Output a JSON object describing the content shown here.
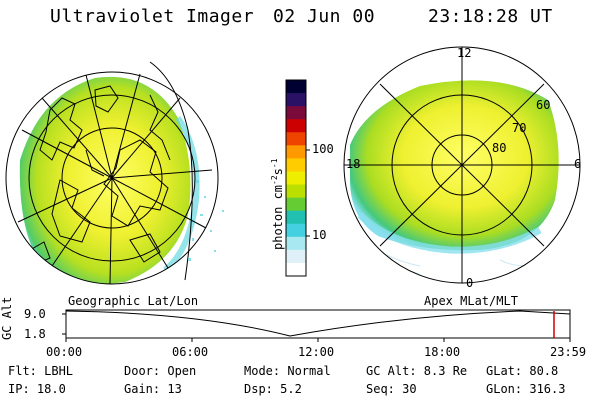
{
  "header": {
    "title": "Ultraviolet Imager",
    "date": "02 Jun 00",
    "time": "23:18:28 UT"
  },
  "left_panel": {
    "caption": "Geographic Lat/Lon"
  },
  "right_panel": {
    "caption": "Apex MLat/MLT",
    "mlt_labels": [
      "12",
      "18",
      "6",
      "0"
    ],
    "mlat_labels": [
      "60",
      "70",
      "80"
    ]
  },
  "colorbar": {
    "unit_label": "photon cm",
    "unit_exp1": "-2",
    "unit_mid": "s",
    "unit_exp2": "-1",
    "ticks": [
      "100",
      "10"
    ],
    "scale": "log",
    "colors": [
      "#000033",
      "#2a1166",
      "#7a0a3a",
      "#cc0000",
      "#ee4400",
      "#ff9900",
      "#ffcc00",
      "#eeee00",
      "#bbe000",
      "#66cc33",
      "#22c0b0",
      "#44d0e0",
      "#a8e8f0",
      "#e0f0f8",
      "#ffffff"
    ]
  },
  "timeline": {
    "ylabel": "GC Alt",
    "y_ticks": [
      "9.0",
      "1.8"
    ],
    "x_ticks": [
      "00:00",
      "06:00",
      "12:00",
      "18:00",
      "23:59"
    ],
    "marker_color": "#cc0000"
  },
  "info": {
    "flt": "Flt: LBHL",
    "ip": "IP: 18.0",
    "door": "Door: Open",
    "gain": "Gain: 13",
    "mode": "Mode: Normal",
    "dsp": "Dsp:    5.2",
    "gc_alt": "GC Alt: 8.3 Re",
    "seq": "Seq: 30",
    "glat": "GLat:  80.8",
    "glon": "GLon: 316.3"
  }
}
